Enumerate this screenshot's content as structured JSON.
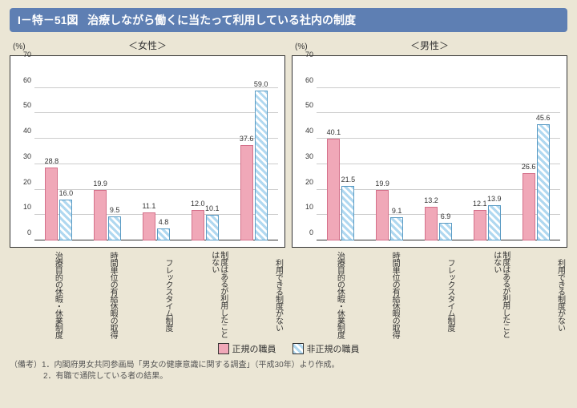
{
  "fig_id": "I－特－51図",
  "title": "治療しながら働くに当たって利用している社内の制度",
  "panels": [
    {
      "name": "＜女性＞"
    },
    {
      "name": "＜男性＞"
    }
  ],
  "y": {
    "unit": "(%)",
    "min": 0,
    "max": 70,
    "step": 10
  },
  "categories": [
    "治療目的の休暇・休業制度",
    "時間単位の有給休暇の取得",
    "フレックスタイム制度",
    "制度はあるが利用したことはない",
    "利用できる制度がない"
  ],
  "series": [
    {
      "key": "regular",
      "label": "正規の職員"
    },
    {
      "key": "nonregular",
      "label": "非正規の職員"
    }
  ],
  "data": {
    "female": {
      "regular": [
        28.8,
        19.9,
        11.1,
        12.0,
        37.6
      ],
      "nonregular": [
        16.0,
        9.5,
        4.8,
        10.1,
        59.0
      ]
    },
    "male": {
      "regular": [
        40.1,
        19.9,
        13.2,
        12.1,
        26.6
      ],
      "nonregular": [
        21.5,
        9.1,
        6.9,
        13.9,
        45.6
      ]
    }
  },
  "colors": {
    "regular_fill": "#f0a8b8",
    "regular_border": "#d4708a",
    "nonregular_fill": "#b0d8f0",
    "nonregular_border": "#5a9bc4",
    "background": "#ebe6d5",
    "title_bg": "#5e7fb3",
    "grid": "#cccccc"
  },
  "notes": [
    "（備考）1．内閣府男女共同参画局「男女の健康意識に関する調査」（平成30年）より作成。",
    "2．有職で通院している者の結果。"
  ]
}
